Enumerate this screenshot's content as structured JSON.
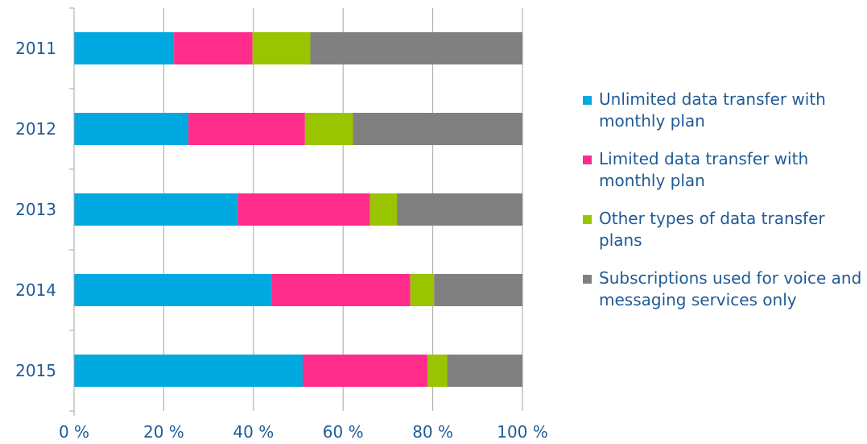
{
  "chart_data": {
    "type": "bar",
    "orientation": "horizontal",
    "stacked": "percent",
    "categories": [
      "2011",
      "2012",
      "2013",
      "2014",
      "2015"
    ],
    "series": [
      {
        "name": "Unlimited data transfer with monthly plan",
        "color": "#00a9e0",
        "values": [
          22.3,
          25.5,
          36.5,
          44.0,
          51.0
        ]
      },
      {
        "name": "Limited data transfer with monthly plan",
        "color": "#ff2c8c",
        "values": [
          17.5,
          26.0,
          29.5,
          31.0,
          27.8
        ]
      },
      {
        "name": "Other types of data transfer plans",
        "color": "#99c400",
        "values": [
          12.9,
          10.7,
          6.0,
          5.3,
          4.4
        ]
      },
      {
        "name": "Subscriptions used for voice and messaging services only",
        "color": "#808080",
        "values": [
          47.3,
          37.8,
          28.0,
          19.7,
          16.8
        ]
      }
    ],
    "x_ticks": [
      "0 %",
      "20 %",
      "40 %",
      "60 %",
      "80 %",
      "100 %"
    ],
    "xlim": [
      0,
      100
    ],
    "grid": "vertical",
    "legend_position": "right"
  }
}
